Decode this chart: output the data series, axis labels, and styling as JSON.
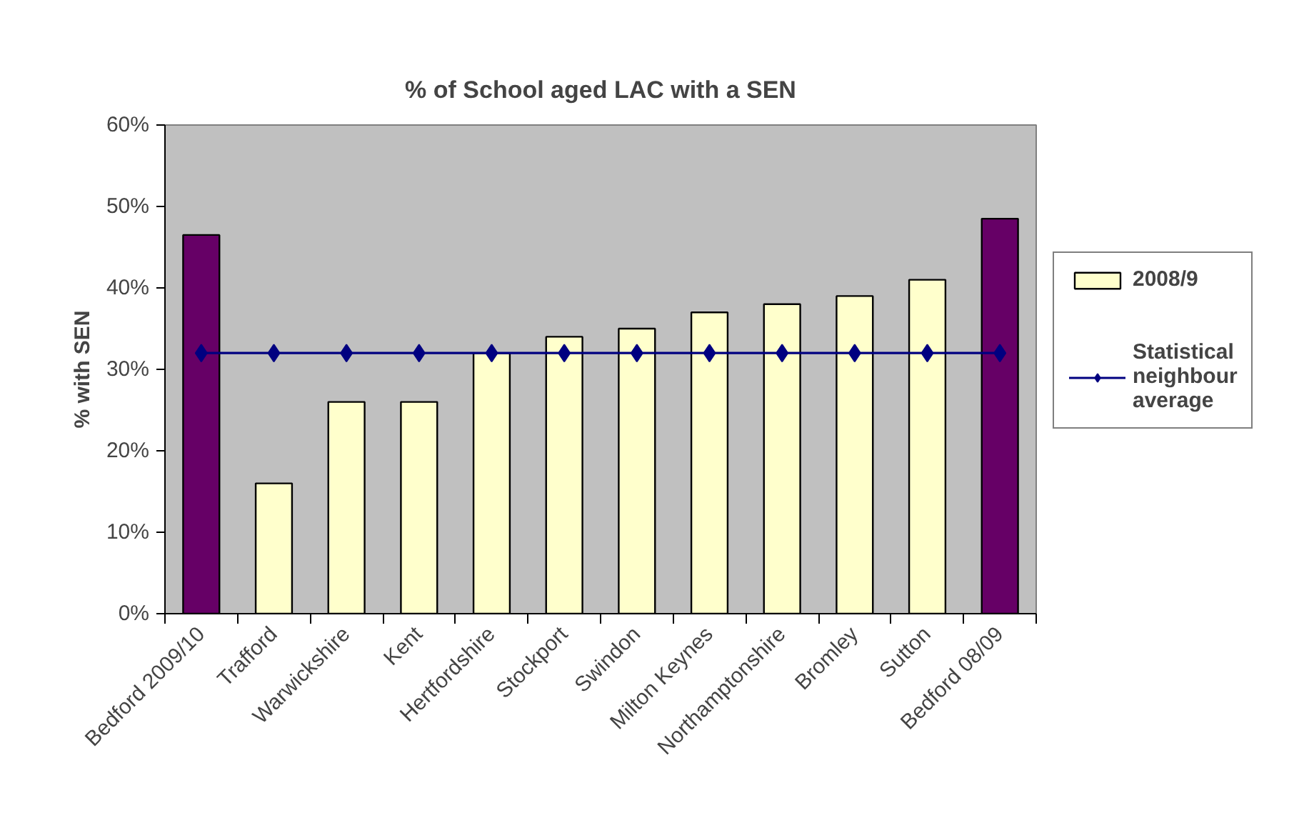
{
  "chart_data": {
    "type": "bar",
    "title": "% of School aged LAC with a SEN",
    "ylabel": "% with SEN",
    "categories": [
      "Bedford 2009/10",
      "Trafford",
      "Warwickshire",
      "Kent",
      "Hertfordshire",
      "Stockport",
      "Swindon",
      "Milton Keynes",
      "Northamptonshire",
      "Bromley",
      "Sutton",
      "Bedford 08/09"
    ],
    "series": [
      {
        "name": "2008/9",
        "color": "#ffffcc",
        "colors": [
          "#660066",
          "#ffffcc",
          "#ffffcc",
          "#ffffcc",
          "#ffffcc",
          "#ffffcc",
          "#ffffcc",
          "#ffffcc",
          "#ffffcc",
          "#ffffcc",
          "#ffffcc",
          "#660066"
        ],
        "values": [
          46.5,
          16,
          26,
          26,
          32,
          34,
          35,
          37,
          38,
          39,
          41,
          48.5
        ]
      },
      {
        "name": "Statistical neighbour average",
        "type": "line",
        "color": "#000080",
        "marker": "diamond",
        "values": [
          32,
          32,
          32,
          32,
          32,
          32,
          32,
          32,
          32,
          32,
          32,
          32
        ]
      }
    ],
    "ylim": [
      0,
      60
    ],
    "yticks": [
      {
        "value": 0,
        "label": "0%"
      },
      {
        "value": 10,
        "label": "10%"
      },
      {
        "value": 20,
        "label": "20%"
      },
      {
        "value": 30,
        "label": "30%"
      },
      {
        "value": 40,
        "label": "40%"
      },
      {
        "value": 50,
        "label": "50%"
      },
      {
        "value": 60,
        "label": "60%"
      }
    ],
    "grid": false,
    "legend": "right"
  }
}
